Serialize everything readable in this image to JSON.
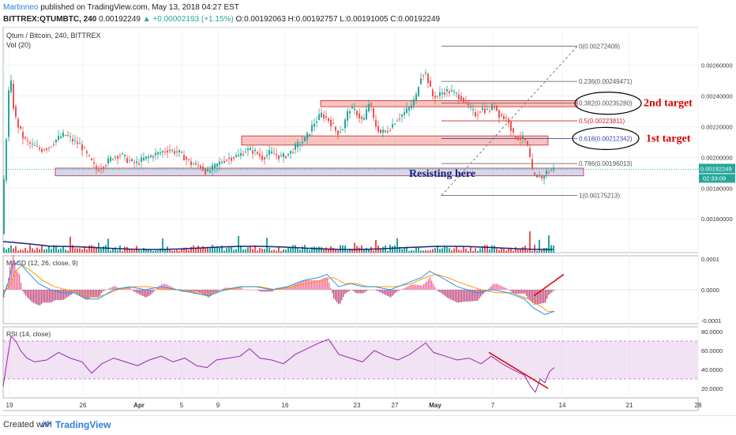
{
  "header": {
    "author": "Martinneo",
    "published": "published on TradingView.com, May 13, 2018 04:27 EST",
    "symbol": "BITTREX:QTUMBTC, 240",
    "last": "0.00192249",
    "change": "▲ +0.00002193 (+1.15%)",
    "ohlc": "O:0.00192063 H:0.00192757 L:0.00191005 C:0.00192249"
  },
  "footer": {
    "created": "Created with",
    "brand": "TradingView"
  },
  "colors": {
    "bull": "#26a69a",
    "bear": "#ef5350",
    "macd": "#2196f3",
    "signal": "#ff9800",
    "rsi": "#9c27b0",
    "annot": "#d50000",
    "band": "#e1bee7"
  },
  "chart_data": [
    {
      "type": "candlestick",
      "title": "Qtum / Bitcoin, 240, BITTREX",
      "x_tick_labels": [
        "19",
        "26",
        "Apr",
        "5",
        "9",
        "16",
        "23",
        "27",
        "May",
        "7",
        "14",
        "21",
        "28"
      ],
      "y_tick_labels": [
        "0.00260000",
        "0.00240000",
        "0.00220000",
        "0.00200000",
        "0.00180000",
        "0.00160000"
      ],
      "ylim": [
        0.00138,
        0.00285
      ],
      "last_price_label": "0.00192249",
      "countdown_label": "02:33:09",
      "close_path": [
        [
          0,
          0.0015
        ],
        [
          2,
          0.00175
        ],
        [
          5,
          0.00205
        ],
        [
          8,
          0.0023
        ],
        [
          10,
          0.00255
        ],
        [
          12,
          0.00248
        ],
        [
          14,
          0.00236
        ],
        [
          18,
          0.00225
        ],
        [
          22,
          0.00219
        ],
        [
          28,
          0.00212
        ],
        [
          35,
          0.00209
        ],
        [
          42,
          0.00207
        ],
        [
          50,
          0.00205
        ],
        [
          60,
          0.00207
        ],
        [
          70,
          0.00212
        ],
        [
          80,
          0.00215
        ],
        [
          90,
          0.00211
        ],
        [
          100,
          0.00208
        ],
        [
          110,
          0.002
        ],
        [
          120,
          0.00192
        ],
        [
          130,
          0.00195
        ],
        [
          140,
          0.002
        ],
        [
          150,
          0.00202
        ],
        [
          160,
          0.00198
        ],
        [
          170,
          0.00196
        ],
        [
          180,
          0.00199
        ],
        [
          195,
          0.00202
        ],
        [
          210,
          0.00205
        ],
        [
          225,
          0.00203
        ],
        [
          240,
          0.00196
        ],
        [
          252,
          0.00194
        ],
        [
          260,
          0.0019
        ],
        [
          270,
          0.00194
        ],
        [
          280,
          0.00198
        ],
        [
          290,
          0.002
        ],
        [
          300,
          0.00201
        ],
        [
          310,
          0.00205
        ],
        [
          320,
          0.00204
        ],
        [
          330,
          0.002
        ],
        [
          340,
          0.00203
        ],
        [
          355,
          0.002
        ],
        [
          365,
          0.00203
        ],
        [
          375,
          0.00208
        ],
        [
          385,
          0.00212
        ],
        [
          395,
          0.00222
        ],
        [
          405,
          0.00228
        ],
        [
          415,
          0.00224
        ],
        [
          425,
          0.00216
        ],
        [
          432,
          0.00219
        ],
        [
          440,
          0.00232
        ],
        [
          448,
          0.0023
        ],
        [
          458,
          0.00223
        ],
        [
          466,
          0.00237
        ],
        [
          472,
          0.00222
        ],
        [
          480,
          0.00216
        ],
        [
          490,
          0.00218
        ],
        [
          500,
          0.00225
        ],
        [
          510,
          0.00229
        ],
        [
          518,
          0.00233
        ],
        [
          525,
          0.0024
        ],
        [
          530,
          0.00253
        ],
        [
          536,
          0.00256
        ],
        [
          540,
          0.0025
        ],
        [
          545,
          0.0024
        ],
        [
          552,
          0.0024
        ],
        [
          560,
          0.00243
        ],
        [
          568,
          0.00243
        ],
        [
          576,
          0.00241
        ],
        [
          584,
          0.00238
        ],
        [
          592,
          0.00232
        ],
        [
          600,
          0.00228
        ],
        [
          608,
          0.00232
        ],
        [
          616,
          0.0023
        ],
        [
          624,
          0.00234
        ],
        [
          630,
          0.00228
        ],
        [
          636,
          0.00226
        ],
        [
          642,
          0.00224
        ],
        [
          648,
          0.00214
        ],
        [
          654,
          0.00213
        ],
        [
          660,
          0.00212
        ],
        [
          664,
          0.0021
        ],
        [
          668,
          0.00202
        ],
        [
          672,
          0.0019
        ],
        [
          676,
          0.00186
        ],
        [
          680,
          0.00189
        ],
        [
          684,
          0.00186
        ],
        [
          688,
          0.0019
        ],
        [
          692,
          0.00191
        ],
        [
          698,
          0.00192
        ]
      ],
      "fibonacci": [
        {
          "label": "0(0.00272409)",
          "value": 0.00272409
        },
        {
          "label": "0.236(0.00249471)",
          "value": 0.00249471
        },
        {
          "label": "0.382(0.00235280)",
          "value": 0.0023528
        },
        {
          "label": "0.5(0.00223811)",
          "value": 0.00223811
        },
        {
          "label": "0.618(0.00212342)",
          "value": 0.00212342
        },
        {
          "label": "0.786(0.00196013)",
          "value": 0.00196013
        },
        {
          "label": "1(0.00175213)",
          "value": 0.00175213
        }
      ],
      "zones": [
        {
          "from_bar": 66,
          "to_bar": 735,
          "low": 0.00188,
          "high": 0.00193,
          "kind": "support"
        },
        {
          "from_bar": 302,
          "to_bar": 690,
          "low": 0.00208,
          "high": 0.00214,
          "kind": "resistance"
        },
        {
          "from_bar": 402,
          "to_bar": 727,
          "low": 0.00233,
          "high": 0.00237,
          "kind": "resistance"
        }
      ],
      "annotations": [
        {
          "text": "2nd target",
          "at": "0.382 level"
        },
        {
          "text": "1st target",
          "at": "0.618 level"
        },
        {
          "text": "Resisting here",
          "at": "support zone"
        }
      ],
      "volume_series": {
        "name": "Vol (20)"
      }
    },
    {
      "type": "line",
      "title": "MACD (12, 26, close, 9)",
      "y_tick_labels": [
        "0.0001",
        "0.0000",
        "-0.0001"
      ],
      "ylim": [
        -0.00011,
        0.00011
      ],
      "macd_path": [
        [
          0,
          -2e-05
        ],
        [
          6,
          2e-05
        ],
        [
          12,
          8e-05
        ],
        [
          20,
          9e-05
        ],
        [
          30,
          6e-05
        ],
        [
          45,
          2e-05
        ],
        [
          60,
          0.0
        ],
        [
          75,
          -1e-05
        ],
        [
          90,
          -1e-05
        ],
        [
          105,
          -3e-05
        ],
        [
          120,
          -3e-05
        ],
        [
          140,
          0.0
        ],
        [
          160,
          1e-05
        ],
        [
          180,
          0.0
        ],
        [
          200,
          1e-05
        ],
        [
          220,
          0.0
        ],
        [
          240,
          -1e-05
        ],
        [
          260,
          -2e-05
        ],
        [
          280,
          0.0
        ],
        [
          300,
          1e-05
        ],
        [
          320,
          1e-05
        ],
        [
          340,
          0.0
        ],
        [
          360,
          1e-05
        ],
        [
          380,
          3e-05
        ],
        [
          400,
          4e-05
        ],
        [
          410,
          5e-05
        ],
        [
          425,
          1e-05
        ],
        [
          440,
          2e-05
        ],
        [
          455,
          1e-05
        ],
        [
          470,
          1e-05
        ],
        [
          490,
          0.0
        ],
        [
          510,
          2e-05
        ],
        [
          530,
          4e-05
        ],
        [
          540,
          6e-05
        ],
        [
          555,
          4e-05
        ],
        [
          575,
          1e-05
        ],
        [
          600,
          -1e-05
        ],
        [
          620,
          0.0
        ],
        [
          640,
          -1e-05
        ],
        [
          660,
          -3e-05
        ],
        [
          672,
          -6e-05
        ],
        [
          686,
          -8e-05
        ],
        [
          698,
          -7e-05
        ]
      ],
      "signal_path": [
        [
          0,
          -1e-05
        ],
        [
          8,
          1e-05
        ],
        [
          16,
          6e-05
        ],
        [
          24,
          8e-05
        ],
        [
          36,
          6e-05
        ],
        [
          50,
          3e-05
        ],
        [
          65,
          1e-05
        ],
        [
          80,
          0.0
        ],
        [
          95,
          -1e-05
        ],
        [
          110,
          -2e-05
        ],
        [
          125,
          -2e-05
        ],
        [
          145,
          0.0
        ],
        [
          165,
          1e-05
        ],
        [
          185,
          1e-05
        ],
        [
          205,
          0.0
        ],
        [
          225,
          0.0
        ],
        [
          245,
          -1e-05
        ],
        [
          265,
          -1e-05
        ],
        [
          285,
          0.0
        ],
        [
          305,
          1e-05
        ],
        [
          325,
          1e-05
        ],
        [
          345,
          0.0
        ],
        [
          365,
          1e-05
        ],
        [
          385,
          2e-05
        ],
        [
          405,
          3e-05
        ],
        [
          418,
          4e-05
        ],
        [
          432,
          2e-05
        ],
        [
          447,
          2e-05
        ],
        [
          462,
          1e-05
        ],
        [
          478,
          1e-05
        ],
        [
          497,
          1e-05
        ],
        [
          517,
          2e-05
        ],
        [
          535,
          4e-05
        ],
        [
          548,
          5e-05
        ],
        [
          562,
          4e-05
        ],
        [
          582,
          2e-05
        ],
        [
          605,
          0.0
        ],
        [
          625,
          -1e-05
        ],
        [
          645,
          -1e-05
        ],
        [
          665,
          -3e-05
        ],
        [
          678,
          -5e-05
        ],
        [
          690,
          -7e-05
        ],
        [
          698,
          -7e-05
        ]
      ]
    },
    {
      "type": "line",
      "title": "RSI (14, close)",
      "y_tick_labels": [
        "80.0000",
        "60.0000",
        "40.0000",
        "20.0000"
      ],
      "ylim": [
        10,
        85
      ],
      "band": [
        30,
        70
      ],
      "rsi_path": [
        [
          0,
          22
        ],
        [
          6,
          55
        ],
        [
          10,
          75
        ],
        [
          16,
          70
        ],
        [
          22,
          60
        ],
        [
          30,
          52
        ],
        [
          40,
          48
        ],
        [
          55,
          50
        ],
        [
          70,
          58
        ],
        [
          85,
          52
        ],
        [
          100,
          48
        ],
        [
          112,
          36
        ],
        [
          125,
          46
        ],
        [
          140,
          52
        ],
        [
          155,
          48
        ],
        [
          170,
          44
        ],
        [
          185,
          50
        ],
        [
          200,
          54
        ],
        [
          215,
          48
        ],
        [
          230,
          52
        ],
        [
          245,
          44
        ],
        [
          258,
          42
        ],
        [
          270,
          50
        ],
        [
          285,
          52
        ],
        [
          300,
          54
        ],
        [
          312,
          62
        ],
        [
          325,
          52
        ],
        [
          340,
          50
        ],
        [
          355,
          46
        ],
        [
          370,
          56
        ],
        [
          385,
          62
        ],
        [
          400,
          68
        ],
        [
          412,
          72
        ],
        [
          425,
          56
        ],
        [
          440,
          52
        ],
        [
          455,
          48
        ],
        [
          470,
          60
        ],
        [
          485,
          54
        ],
        [
          500,
          50
        ],
        [
          515,
          56
        ],
        [
          525,
          62
        ],
        [
          535,
          68
        ],
        [
          545,
          58
        ],
        [
          560,
          54
        ],
        [
          575,
          50
        ],
        [
          590,
          52
        ],
        [
          605,
          46
        ],
        [
          618,
          54
        ],
        [
          632,
          46
        ],
        [
          645,
          40
        ],
        [
          660,
          34
        ],
        [
          668,
          22
        ],
        [
          674,
          16
        ],
        [
          680,
          30
        ],
        [
          686,
          26
        ],
        [
          692,
          38
        ],
        [
          698,
          42
        ]
      ],
      "trendline": "red descending trendline"
    }
  ]
}
